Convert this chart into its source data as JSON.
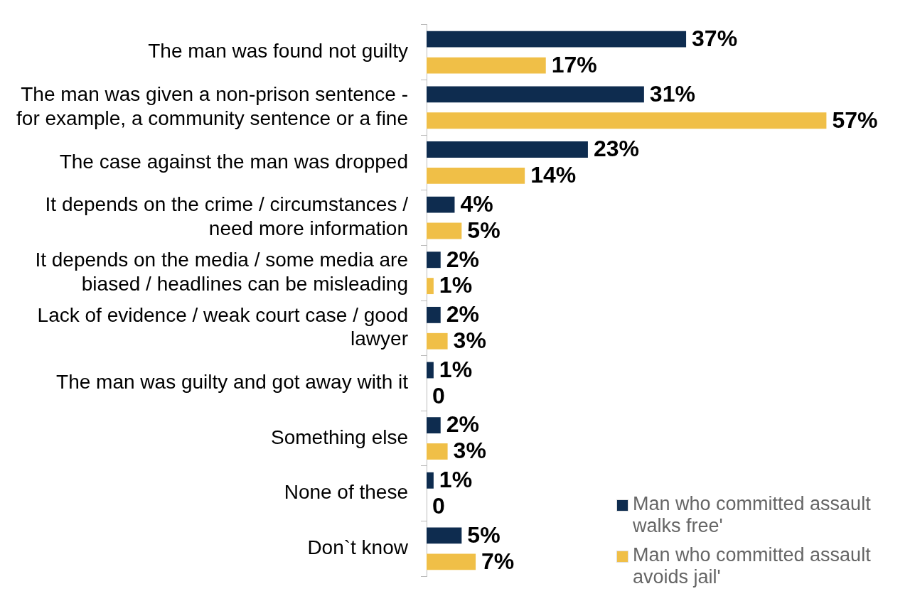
{
  "chart_data": {
    "type": "bar",
    "orientation": "horizontal",
    "categories": [
      "The man was found not guilty",
      "The man was given a non-prison sentence - for example, a community sentence or a fine",
      "The case against the man was dropped",
      "It depends on the crime / circumstances / need more information",
      "It depends on the media / some media are biased / headlines can be misleading",
      "Lack of evidence / weak court case / good lawyer",
      "The man was guilty and got away with it",
      "Something else",
      "None of these",
      "Don`t know"
    ],
    "series": [
      {
        "name": "Man who committed assault walks free'",
        "color": "#0e2c4f",
        "values": [
          37,
          31,
          23,
          4,
          2,
          2,
          1,
          2,
          1,
          5
        ],
        "value_labels": [
          "37%",
          "31%",
          "23%",
          "4%",
          "2%",
          "2%",
          "1%",
          "2%",
          "1%",
          "5%"
        ]
      },
      {
        "name": "Man who committed assault avoids jail'",
        "color": "#f0bf47",
        "values": [
          17,
          57,
          14,
          5,
          1,
          3,
          0,
          3,
          0,
          7
        ],
        "value_labels": [
          "17%",
          "57%",
          "14%",
          "5%",
          "1%",
          "3%",
          "0",
          "3%",
          "0",
          "7%"
        ]
      }
    ],
    "tick_labels": "y",
    "grid": false,
    "legend": "bottom right"
  }
}
